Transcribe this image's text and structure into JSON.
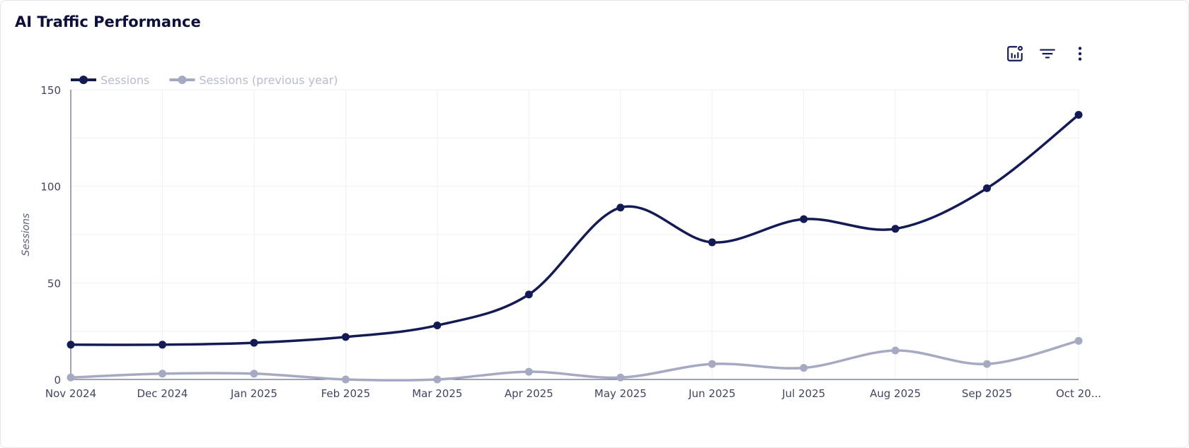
{
  "title": "AI Traffic Performance",
  "toolbar": {
    "icons": [
      "chart-settings-icon",
      "filter-icon",
      "more-vertical-icon"
    ]
  },
  "colors": {
    "sessions": "#141b54",
    "previous": "#a5a9c1"
  },
  "chart_data": {
    "type": "line",
    "title": "",
    "xlabel": "",
    "ylabel": "Sessions",
    "ylim": [
      0,
      150
    ],
    "yticks": [
      0,
      50,
      100,
      150
    ],
    "grid": true,
    "legend": "top-left",
    "categories": [
      "Nov 2024",
      "Dec 2024",
      "Jan 2025",
      "Feb 2025",
      "Mar 2025",
      "Apr 2025",
      "May 2025",
      "Jun 2025",
      "Jul 2025",
      "Aug 2025",
      "Sep 2025",
      "Oct 20..."
    ],
    "series": [
      {
        "name": "Sessions",
        "values": [
          18,
          18,
          19,
          22,
          28,
          44,
          89,
          71,
          83,
          78,
          99,
          137
        ]
      },
      {
        "name": "Sessions (previous year)",
        "values": [
          1,
          3,
          3,
          0,
          0,
          4,
          1,
          8,
          6,
          15,
          8,
          20
        ]
      }
    ]
  }
}
